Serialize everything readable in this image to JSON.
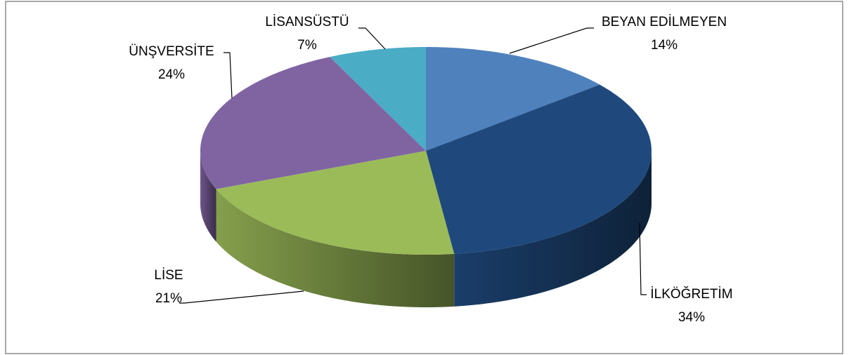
{
  "chart_data": {
    "type": "pie",
    "categories": [
      "BEYAN EDİLMEYEN",
      "İLKÖĞRETİM",
      "LİSE",
      "ÜNŞVERSİTE",
      "LİSANSÜSTÜ"
    ],
    "values": [
      14,
      34,
      21,
      24,
      7
    ],
    "value_labels": [
      "14%",
      "34%",
      "21%",
      "24%",
      "7%"
    ],
    "colors": [
      "#4f81bd",
      "#1f497d",
      "#9bbb59",
      "#8064a2",
      "#4bacc6"
    ]
  }
}
